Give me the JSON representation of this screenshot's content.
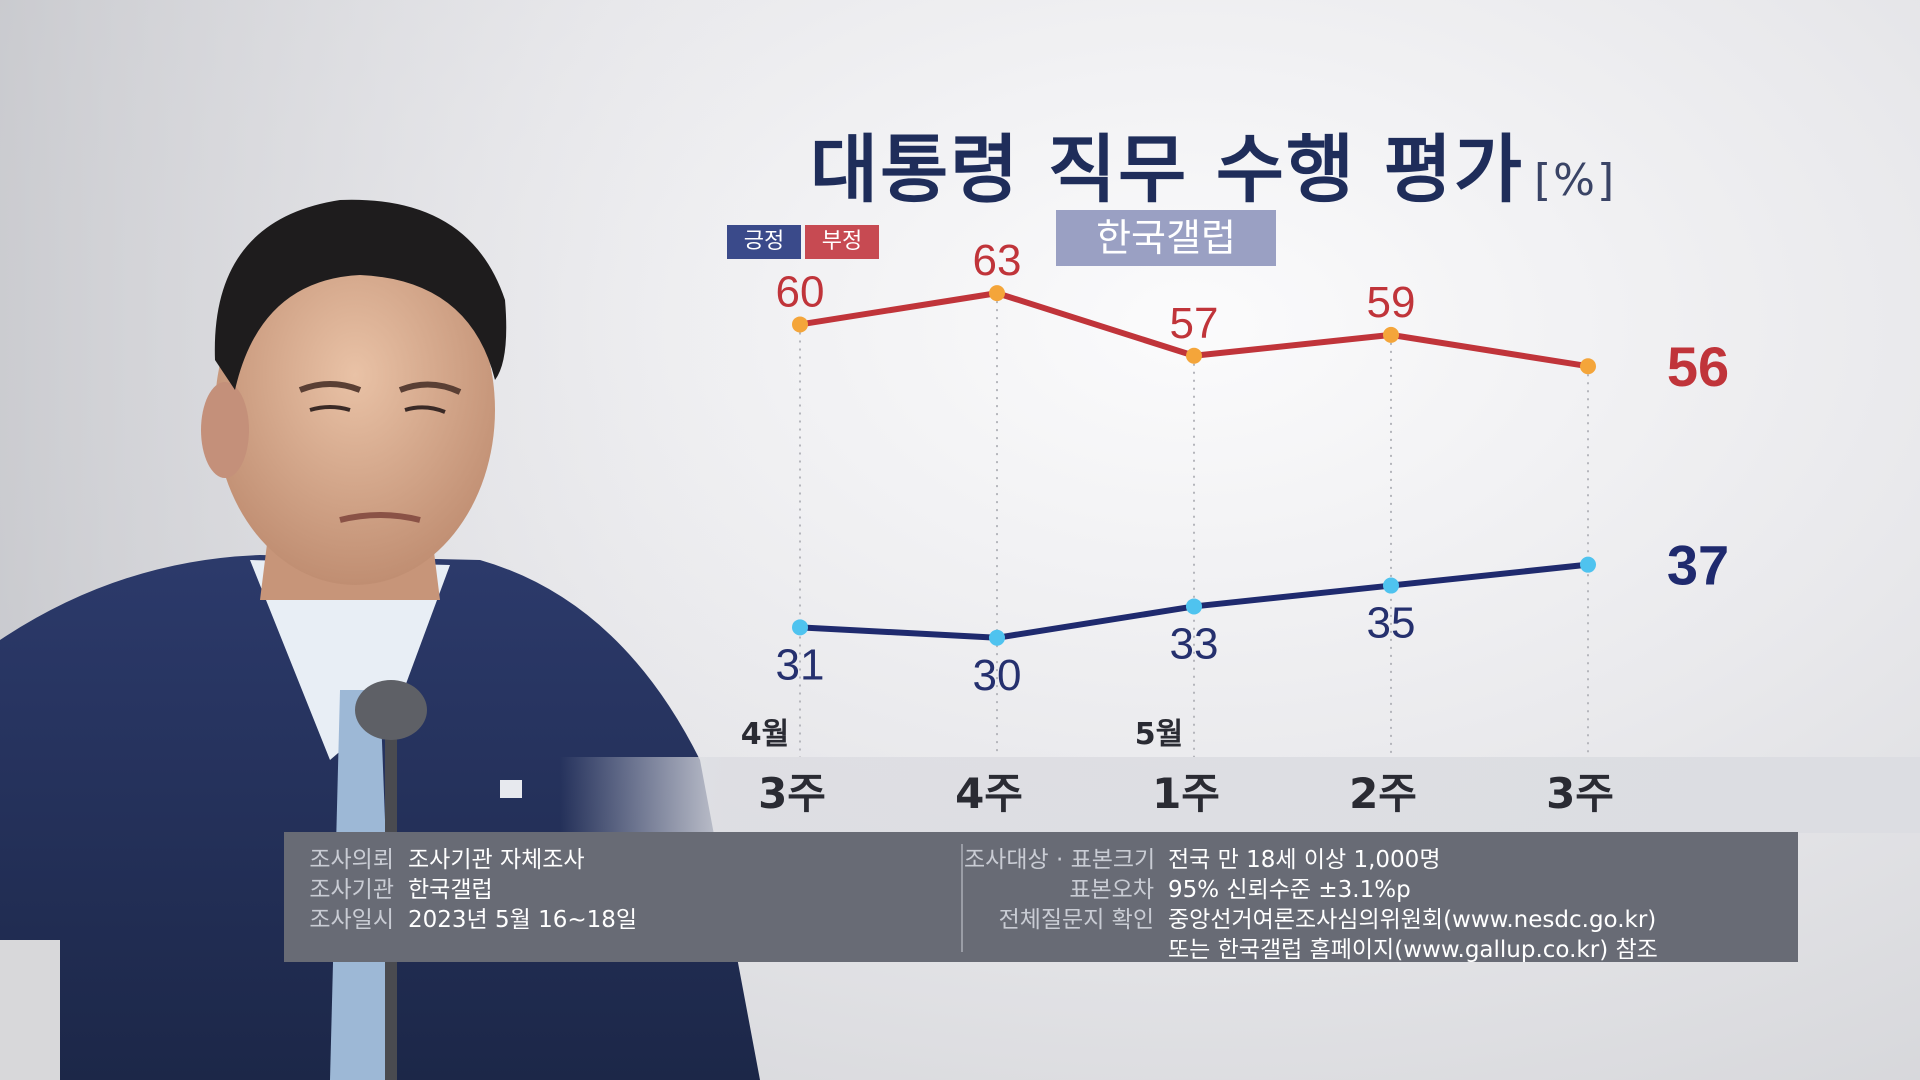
{
  "header": {
    "title": "대통령 직무 수행 평가",
    "unit": "[%]",
    "source_badge": "한국갤럽"
  },
  "legend": {
    "positive": "긍정",
    "negative": "부정"
  },
  "colors": {
    "positive": "#1f2a6e",
    "positive_dot": "#4fc3ef",
    "negative": "#c0343a",
    "negative_dot": "#f4a53a",
    "negative_label": "#c0343a",
    "positive_label": "#25306e"
  },
  "chart_data": {
    "type": "line",
    "categories": [
      "3주",
      "4주",
      "1주",
      "2주",
      "3주"
    ],
    "month_labels": [
      {
        "index": 0,
        "label": "4월"
      },
      {
        "index": 2,
        "label": "5월"
      }
    ],
    "series": [
      {
        "name": "부정",
        "values": [
          60,
          63,
          57,
          59,
          56
        ]
      },
      {
        "name": "긍정",
        "values": [
          31,
          30,
          33,
          35,
          37
        ]
      }
    ],
    "ylim": [
      25,
      70
    ],
    "grid": false,
    "legend_position": "top-left"
  },
  "info": {
    "left": [
      {
        "label": "조사의뢰",
        "value": "조사기관 자체조사"
      },
      {
        "label": "조사기관",
        "value": "한국갤럽"
      },
      {
        "label": "조사일시",
        "value": "2023년 5월 16~18일"
      }
    ],
    "right": [
      {
        "label": "조사대상 · 표본크기",
        "value": "전국 만 18세 이상 1,000명"
      },
      {
        "label": "표본오차",
        "value": "95% 신뢰수준 ±3.1%p"
      },
      {
        "label": "전체질문지 확인",
        "value": "중앙선거여론조사심의위원회(www.nesdc.go.kr)"
      },
      {
        "label": "",
        "value": "또는 한국갤럽 홈페이지(www.gallup.co.kr) 참조"
      }
    ]
  }
}
